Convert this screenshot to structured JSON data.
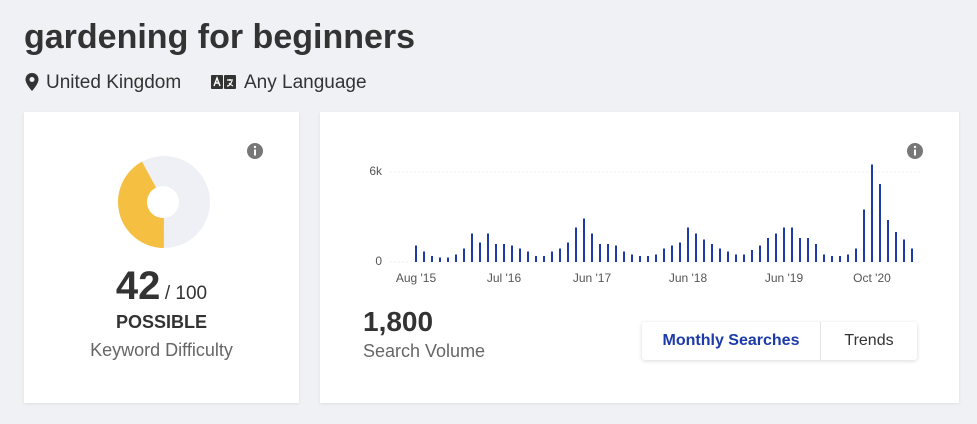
{
  "header": {
    "title": "gardening for beginners",
    "location": "United Kingdom",
    "language": "Any Language"
  },
  "difficulty": {
    "score": 42,
    "max": {
      "value": 100,
      "label": "/ 100"
    },
    "rating": "POSSIBLE",
    "caption": "Keyword Difficulty",
    "color": "#f5c042"
  },
  "volume": {
    "value": "1,800",
    "caption": "Search Volume"
  },
  "tabs": [
    "Monthly Searches",
    "Trends"
  ],
  "chart_data": {
    "type": "bar",
    "color": "#1c3aa9",
    "categories": [
      "Aug '15",
      null,
      null,
      null,
      null,
      null,
      null,
      null,
      null,
      null,
      null,
      "Jul '16",
      null,
      null,
      null,
      null,
      null,
      null,
      null,
      null,
      null,
      null,
      "Jun '17",
      null,
      null,
      null,
      null,
      null,
      null,
      null,
      null,
      null,
      null,
      null,
      "Jun '18",
      null,
      null,
      null,
      null,
      null,
      null,
      null,
      null,
      null,
      null,
      null,
      "Jun '19",
      null,
      null,
      null,
      null,
      null,
      null,
      null,
      null,
      null,
      null,
      "Oct '20",
      null,
      null,
      null,
      null,
      null
    ],
    "values": [
      1100,
      700,
      400,
      300,
      300,
      500,
      900,
      1900,
      1300,
      1900,
      1200,
      1200,
      1100,
      900,
      700,
      400,
      400,
      700,
      900,
      1300,
      2300,
      2900,
      1900,
      1200,
      1200,
      1100,
      700,
      500,
      400,
      400,
      500,
      900,
      1100,
      1300,
      2300,
      1900,
      1500,
      1200,
      900,
      700,
      500,
      500,
      800,
      1100,
      1600,
      1900,
      2300,
      2300,
      1600,
      1600,
      1200,
      500,
      400,
      400,
      500,
      900,
      3500,
      6500,
      5200,
      2800,
      2000,
      1500,
      900
    ],
    "ylim": [
      0,
      7000
    ],
    "yticks": [
      0,
      {
        "value": 6000,
        "label": "6k"
      }
    ],
    "grid": true
  }
}
